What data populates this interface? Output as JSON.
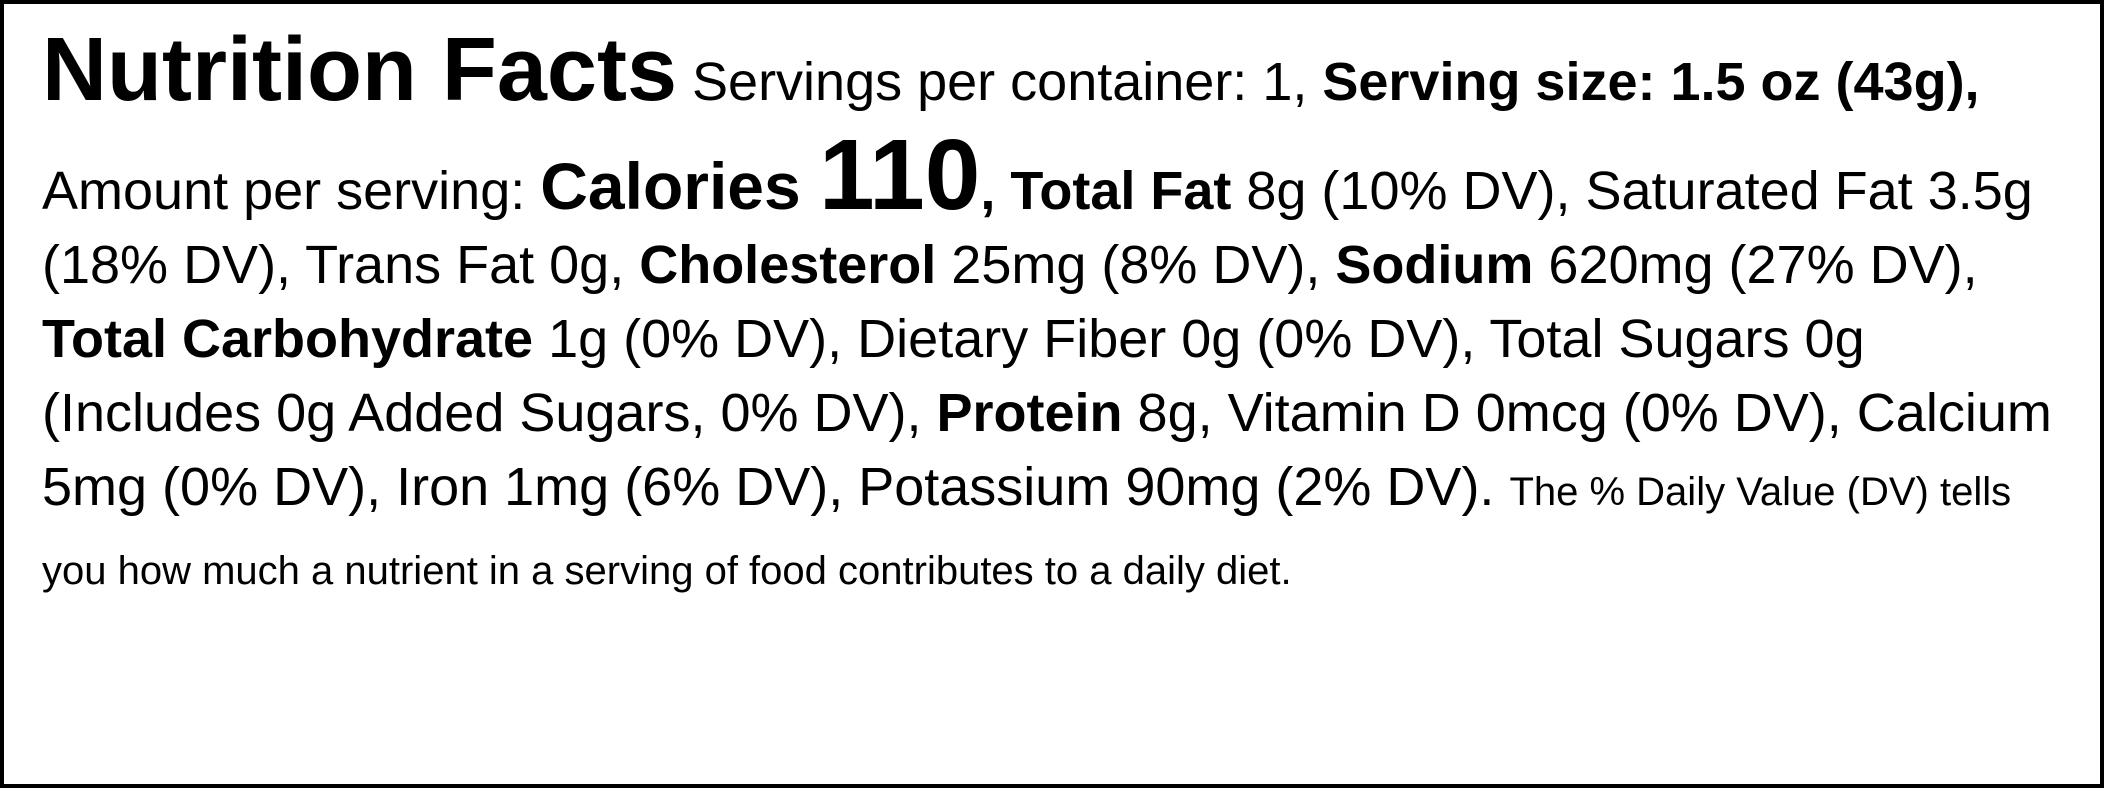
{
  "label": {
    "runs": [
      {
        "text": "Nutrition Facts",
        "style": "title"
      },
      {
        "text": " Servings per container: 1, ",
        "style": "regular"
      },
      {
        "text": "Serving size: 1.5 oz (43g),",
        "style": "bold"
      },
      {
        "text": " Amount per serving: ",
        "style": "regular"
      },
      {
        "text": "Calories ",
        "style": "calories"
      },
      {
        "text": "110",
        "style": "calories-number"
      },
      {
        "text": ", ",
        "style": "bold"
      },
      {
        "text": "Total Fat",
        "style": "bold"
      },
      {
        "text": " 8g (10% DV), Saturated Fat 3.5g (18% DV), Trans Fat 0g, ",
        "style": "regular"
      },
      {
        "text": "Cholesterol",
        "style": "bold"
      },
      {
        "text": " 25mg (8% DV), ",
        "style": "regular"
      },
      {
        "text": "Sodium",
        "style": "bold"
      },
      {
        "text": " 620mg (27% DV), ",
        "style": "regular"
      },
      {
        "text": "Total Carbohydrate",
        "style": "bold"
      },
      {
        "text": " 1g (0% DV), Dietary Fiber 0g (0% DV), Total Sugars 0g (Includes 0g Added Sugars, 0% DV), ",
        "style": "regular"
      },
      {
        "text": "Protein",
        "style": "bold"
      },
      {
        "text": " 8g, Vitamin D 0mcg (0% DV), Calcium 5mg (0% DV), Iron 1mg (6% DV), Potassium 90mg (2% DV). ",
        "style": "regular"
      },
      {
        "text": "The % Daily Value (DV) tells you how much a nutrient in a serving of food contributes to a daily diet.",
        "style": "footnote"
      }
    ]
  }
}
